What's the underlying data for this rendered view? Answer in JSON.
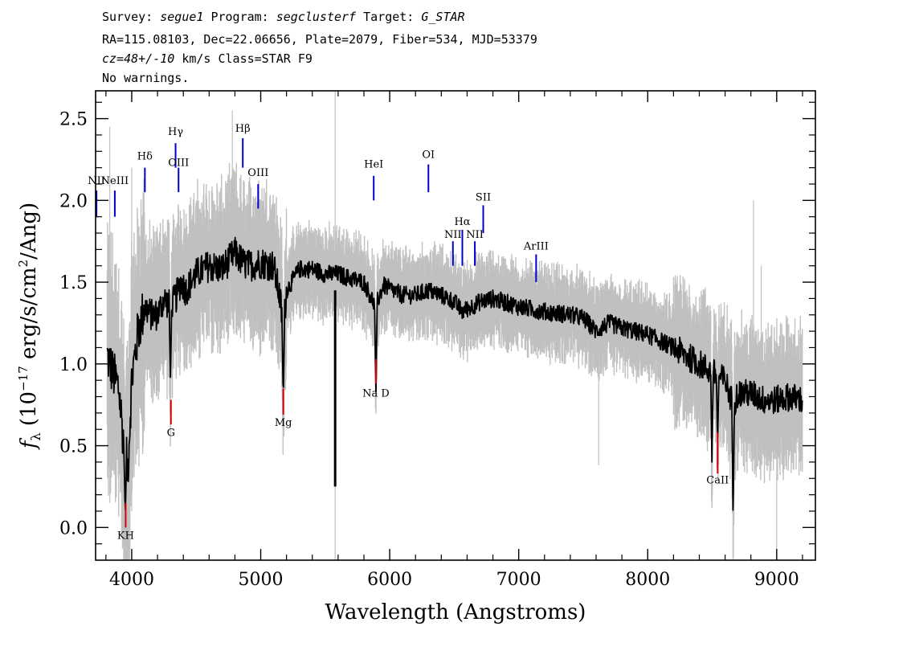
{
  "header": {
    "line1": {
      "survey_label": "Survey: ",
      "survey": "segue1",
      "program_label": " Program: ",
      "program": "segclusterf",
      "target_label": " Target: ",
      "target": "G_STAR"
    },
    "line2": "RA=115.08103, Dec=22.06656, Plate=2079, Fiber=534, MJD=53379",
    "line3": {
      "cz": "cz=48+/-10",
      "rest": " km/s Class=STAR F9"
    },
    "line4": "No warnings."
  },
  "chart_data": {
    "type": "line",
    "xlabel": "Wavelength (Angstroms)",
    "ylabel": "f_λ (10^-17 erg/s/cm²/Ang)",
    "ylabel_parts": {
      "f": "f",
      "sub": "λ",
      "pre": " (10",
      "exp": "−17",
      "mid": " erg/s/cm",
      "exp2": "2",
      "post": "/Ang)"
    },
    "xlim": [
      3720,
      9300
    ],
    "ylim": [
      -0.2,
      2.67
    ],
    "xticks": [
      4000,
      5000,
      6000,
      7000,
      8000,
      9000
    ],
    "xtick_labels": [
      "4000",
      "5000",
      "6000",
      "7000",
      "8000",
      "9000"
    ],
    "yticks": [
      0.0,
      0.5,
      1.0,
      1.5,
      2.0,
      2.5
    ],
    "ytick_labels": [
      "0.0",
      "0.5",
      "1.0",
      "1.5",
      "2.0",
      "2.5"
    ],
    "colors": {
      "spectrum": "#000000",
      "noise": "#c0c0c0",
      "emission": "#0000cc",
      "absorption": "#dd0000",
      "sky": "#000000"
    },
    "series": [
      {
        "role": "spectrum",
        "x": [
          3810,
          3850,
          3900,
          3940,
          3970,
          4000,
          4050,
          4100,
          4150,
          4200,
          4250,
          4300,
          4340,
          4380,
          4420,
          4500,
          4600,
          4700,
          4800,
          4860,
          4900,
          5000,
          5100,
          5150,
          5175,
          5200,
          5300,
          5400,
          5500,
          5600,
          5700,
          5800,
          5890,
          5950,
          6100,
          6200,
          6300,
          6400,
          6500,
          6563,
          6700,
          6800,
          7000,
          7200,
          7400,
          7500,
          7600,
          7700,
          7800,
          8000,
          8200,
          8400,
          8500,
          8550,
          8600,
          8662,
          8700,
          8800,
          8900,
          9000,
          9100,
          9200
        ],
        "y": [
          1.05,
          0.95,
          0.85,
          0.5,
          0.35,
          0.9,
          1.2,
          1.35,
          1.3,
          1.3,
          1.4,
          1.35,
          1.4,
          1.5,
          1.45,
          1.55,
          1.6,
          1.58,
          1.68,
          1.62,
          1.6,
          1.62,
          1.6,
          1.4,
          1.2,
          1.45,
          1.58,
          1.58,
          1.55,
          1.55,
          1.52,
          1.5,
          1.35,
          1.48,
          1.42,
          1.42,
          1.45,
          1.42,
          1.38,
          1.32,
          1.38,
          1.4,
          1.35,
          1.32,
          1.3,
          1.28,
          1.2,
          1.25,
          1.22,
          1.18,
          1.1,
          1.0,
          0.95,
          0.92,
          0.9,
          0.75,
          0.82,
          0.82,
          0.78,
          0.78,
          0.8,
          0.78
        ]
      }
    ],
    "absorption_features": [
      {
        "x": 4300,
        "y": 0.9
      },
      {
        "x": 5175,
        "y": 0.8
      },
      {
        "x": 3950,
        "y": 0.08
      },
      {
        "x": 5893,
        "y": 0.82
      },
      {
        "x": 8498,
        "y": 0.4
      },
      {
        "x": 8542,
        "y": 0.52
      },
      {
        "x": 8662,
        "y": 0.05
      }
    ],
    "sky_lines": [
      {
        "x": 5577,
        "y_bottom": 0.25,
        "y_top": 1.45
      }
    ],
    "line_labels": [
      {
        "text": "NII",
        "x": 3727,
        "y": 2.1,
        "lo": 1.9,
        "hi": 2.06,
        "color": "emission"
      },
      {
        "text": "NeIII",
        "x": 3869,
        "y": 2.1,
        "lo": 1.9,
        "hi": 2.06,
        "color": "emission"
      },
      {
        "text": "Hδ",
        "x": 4102,
        "y": 2.25,
        "lo": 2.05,
        "hi": 2.2,
        "color": "emission"
      },
      {
        "text": "Hγ",
        "x": 4340,
        "y": 2.4,
        "lo": 2.2,
        "hi": 2.35,
        "color": "emission"
      },
      {
        "text": "OIII",
        "x": 4363,
        "y": 2.21,
        "lo": 2.05,
        "hi": 2.2,
        "color": "emission"
      },
      {
        "text": "Hβ",
        "x": 4861,
        "y": 2.42,
        "lo": 2.2,
        "hi": 2.38,
        "color": "emission"
      },
      {
        "text": "OIII",
        "x": 4980,
        "y": 2.15,
        "lo": 1.95,
        "hi": 2.1,
        "color": "emission"
      },
      {
        "text": "HeI",
        "x": 5876,
        "y": 2.2,
        "lo": 2.0,
        "hi": 2.15,
        "color": "emission"
      },
      {
        "text": "OI",
        "x": 6300,
        "y": 2.26,
        "lo": 2.05,
        "hi": 2.22,
        "color": "emission"
      },
      {
        "text": "SII",
        "x": 6725,
        "y": 2.0,
        "lo": 1.8,
        "hi": 1.97,
        "color": "emission"
      },
      {
        "text": "Hα",
        "x": 6563,
        "y": 1.85,
        "lo": 1.6,
        "hi": 1.82,
        "color": "emission"
      },
      {
        "text": "NII",
        "x": 6490,
        "y": 1.77,
        "lo": 1.6,
        "hi": 1.75,
        "color": "emission"
      },
      {
        "text": "NII",
        "x": 6660,
        "y": 1.77,
        "lo": 1.6,
        "hi": 1.75,
        "color": "emission"
      },
      {
        "text": "ArIII",
        "x": 7135,
        "y": 1.7,
        "lo": 1.5,
        "hi": 1.67,
        "color": "emission"
      },
      {
        "text": "KH",
        "x": 3953,
        "y": -0.07,
        "lo": 0.0,
        "hi": 0.15,
        "color": "absorption"
      },
      {
        "text": "G",
        "x": 4304,
        "y": 0.56,
        "lo": 0.63,
        "hi": 0.78,
        "color": "absorption"
      },
      {
        "text": "Mg",
        "x": 5175,
        "y": 0.62,
        "lo": 0.69,
        "hi": 0.85,
        "color": "absorption"
      },
      {
        "text": "Na D",
        "x": 5893,
        "y": 0.8,
        "lo": 0.88,
        "hi": 1.03,
        "color": "absorption"
      },
      {
        "text": "CaII",
        "x": 8542,
        "y": 0.27,
        "lo": 0.33,
        "hi": 0.58,
        "color": "absorption"
      }
    ]
  }
}
